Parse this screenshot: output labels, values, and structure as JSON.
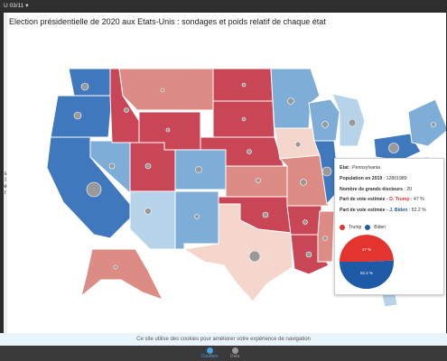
{
  "topbar": {
    "selector_label": "U 03/11",
    "selector_arrow": "▾"
  },
  "title": "Election présidentielle de 2020 aux Etats-Unis : sondages et poids relatif de chaque état",
  "left_marks": [
    "s",
    "l",
    "e",
    "r"
  ],
  "colors": {
    "dark_red": "#c84655",
    "mid_red": "#dc8c84",
    "light_red": "#f4d6cc",
    "dark_blue": "#3f78bd",
    "mid_blue": "#7eaed8",
    "light_blue": "#b7d3ea",
    "marker": "#999999",
    "trump": "#e3342f",
    "biden": "#1f5aa6"
  },
  "tooltip": {
    "state_label": "Etat",
    "state_value": "Pennsylvania",
    "population_label": "Population en 2019",
    "population_value": "12801989",
    "electors_label": "Nombre de grands électeurs",
    "electors_value": "20",
    "trump_share_prefix": "Part de vote estimée -",
    "trump_name": "D. Trump",
    "trump_share_value": "47 %",
    "biden_share_prefix": "Part de vote estimée -",
    "biden_name": "J. Biden",
    "biden_share_value": "52.2 %",
    "legend_trump": "Trump",
    "legend_biden": "Biden",
    "pie_trump_label": "47 %",
    "pie_biden_label": "52.2 %"
  },
  "cookie_text": "Ce site utilise des cookies pour améliorer votre expérience de navigation",
  "tabs": [
    {
      "label": "Courbes"
    },
    {
      "label": "Data"
    }
  ]
}
